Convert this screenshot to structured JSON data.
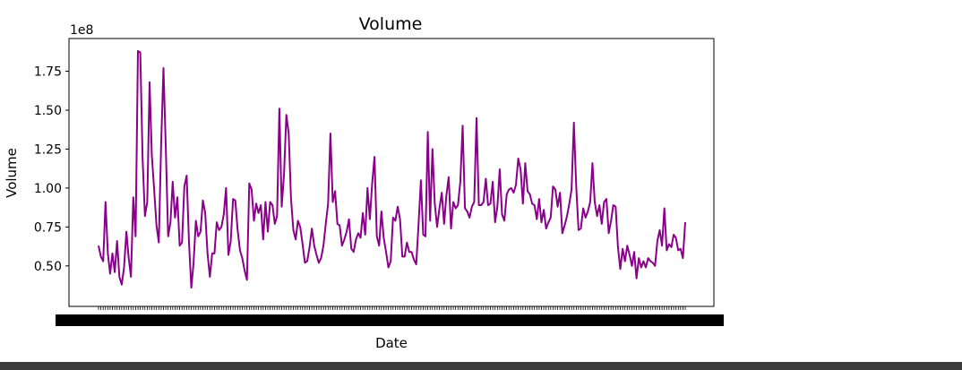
{
  "colors": {
    "line": "#8b008b",
    "axis": "#000000",
    "status_bar": "#3c3c3c"
  },
  "chart_data": {
    "type": "line",
    "title": "Volume",
    "xlabel": "Date",
    "ylabel": "Volume",
    "y_offset_label": "1e8",
    "yticks": [
      "0.50",
      "0.75",
      "1.00",
      "1.25",
      "1.50",
      "1.75"
    ],
    "ylim": [
      0.24,
      1.96
    ],
    "grid": false,
    "series": [
      {
        "values": [
          0.63,
          0.56,
          0.53,
          0.91,
          0.58,
          0.45,
          0.58,
          0.46,
          0.66,
          0.43,
          0.38,
          0.49,
          0.72,
          0.55,
          0.43,
          0.94,
          0.69,
          1.88,
          1.87,
          1.19,
          0.82,
          0.91,
          1.68,
          1.21,
          0.99,
          0.76,
          0.65,
          1.28,
          1.77,
          1.26,
          0.69,
          0.78,
          1.04,
          0.81,
          0.94,
          0.63,
          0.65,
          1.01,
          1.08,
          0.65,
          0.36,
          0.52,
          0.79,
          0.69,
          0.72,
          0.92,
          0.84,
          0.58,
          0.43,
          0.58,
          0.58,
          0.78,
          0.73,
          0.75,
          0.83,
          1.0,
          0.57,
          0.66,
          0.93,
          0.92,
          0.73,
          0.6,
          0.55,
          0.47,
          0.41,
          1.03,
          0.99,
          0.79,
          0.9,
          0.84,
          0.89,
          0.67,
          0.91,
          0.72,
          0.91,
          0.89,
          0.77,
          0.82,
          1.51,
          0.88,
          1.09,
          1.47,
          1.35,
          0.93,
          0.73,
          0.67,
          0.79,
          0.75,
          0.64,
          0.52,
          0.53,
          0.62,
          0.74,
          0.63,
          0.57,
          0.52,
          0.55,
          0.63,
          0.77,
          0.9,
          1.35,
          0.91,
          0.98,
          0.77,
          0.76,
          0.63,
          0.67,
          0.72,
          0.8,
          0.61,
          0.59,
          0.67,
          0.71,
          0.68,
          0.84,
          0.7,
          1.0,
          0.8,
          1.03,
          1.2,
          0.69,
          0.63,
          0.85,
          0.68,
          0.59,
          0.49,
          0.53,
          0.81,
          0.79,
          0.88,
          0.8,
          0.56,
          0.56,
          0.65,
          0.59,
          0.59,
          0.54,
          0.51,
          0.77,
          1.05,
          0.7,
          0.69,
          1.36,
          0.79,
          1.25,
          0.9,
          0.75,
          0.87,
          0.97,
          0.77,
          0.95,
          1.07,
          0.74,
          0.91,
          0.87,
          0.89,
          1.04,
          1.4,
          0.87,
          0.85,
          0.81,
          0.88,
          0.91,
          1.45,
          0.89,
          0.89,
          0.91,
          1.06,
          0.89,
          0.9,
          1.04,
          0.78,
          0.88,
          1.12,
          0.83,
          0.79,
          0.96,
          0.99,
          1.0,
          0.97,
          1.02,
          1.19,
          1.12,
          0.9,
          1.16,
          0.98,
          0.96,
          0.9,
          0.89,
          0.8,
          0.93,
          0.78,
          0.86,
          0.74,
          0.78,
          0.81,
          1.01,
          0.99,
          0.88,
          0.97,
          0.71,
          0.76,
          0.82,
          0.9,
          0.99,
          1.42,
          1.01,
          0.73,
          0.74,
          0.87,
          0.81,
          0.85,
          0.91,
          1.16,
          0.91,
          0.82,
          0.89,
          0.77,
          0.91,
          0.93,
          0.71,
          0.79,
          0.89,
          0.88,
          0.62,
          0.48,
          0.61,
          0.53,
          0.63,
          0.57,
          0.5,
          0.59,
          0.42,
          0.55,
          0.49,
          0.53,
          0.49,
          0.55,
          0.53,
          0.52,
          0.5,
          0.66,
          0.73,
          0.63,
          0.87,
          0.6,
          0.64,
          0.62,
          0.7,
          0.68,
          0.6,
          0.61,
          0.55,
          0.78
        ]
      }
    ]
  }
}
